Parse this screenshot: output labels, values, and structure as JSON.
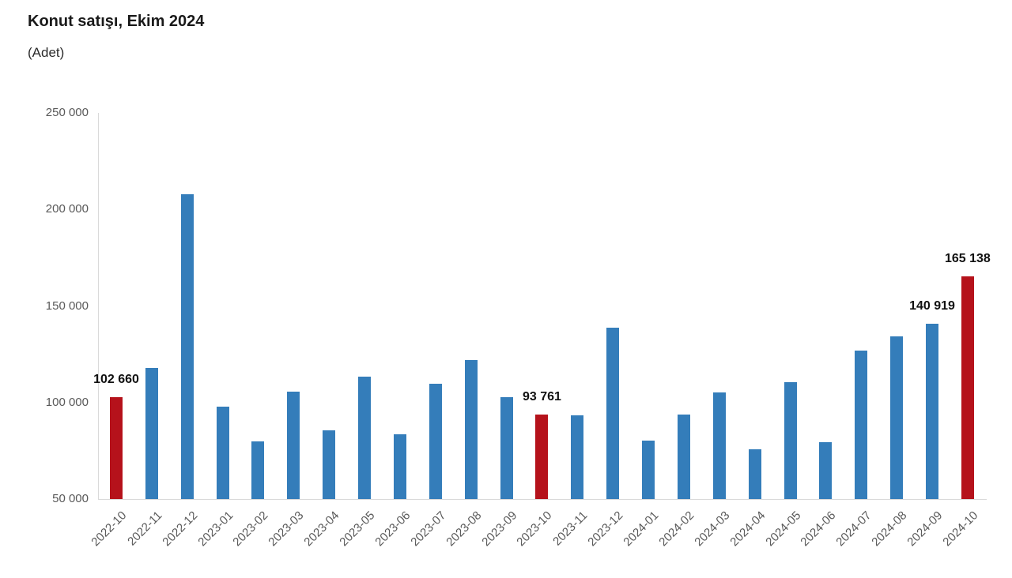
{
  "header": {
    "title": "Konut satışı, Ekim 2024",
    "subtitle": "(Adet)"
  },
  "chart_data": {
    "type": "bar",
    "title": "Konut satışı, Ekim 2024",
    "unit_label": "(Adet)",
    "categories": [
      "2022-10",
      "2022-11",
      "2022-12",
      "2023-01",
      "2023-02",
      "2023-03",
      "2023-04",
      "2023-05",
      "2023-06",
      "2023-07",
      "2023-08",
      "2023-09",
      "2023-10",
      "2023-11",
      "2023-12",
      "2024-01",
      "2024-02",
      "2024-03",
      "2024-04",
      "2024-05",
      "2024-06",
      "2024-07",
      "2024-08",
      "2024-09",
      "2024-10"
    ],
    "values": [
      102660,
      117806,
      207963,
      97708,
      80031,
      105476,
      85652,
      113404,
      83636,
      109548,
      122091,
      102656,
      93761,
      93514,
      138577,
      80308,
      93902,
      105394,
      75569,
      110588,
      79313,
      127088,
      134155,
      140919,
      165138
    ],
    "highlighted_categories": [
      "2022-10",
      "2023-10",
      "2024-10"
    ],
    "data_labels": [
      {
        "category": "2022-10",
        "value": 102660,
        "text": "102 660"
      },
      {
        "category": "2023-10",
        "value": 93761,
        "text": "93 761"
      },
      {
        "category": "2024-09",
        "value": 140919,
        "text": "140 919"
      },
      {
        "category": "2024-10",
        "value": 165138,
        "text": "165 138"
      }
    ],
    "ylim": [
      50000,
      250000
    ],
    "ytick_interval": 50000,
    "ytick_labels": [
      "50 000",
      "100 000",
      "150 000",
      "200 000",
      "250 000"
    ],
    "x_tick_rotation": -45,
    "grid": false,
    "legend": false,
    "colors": {
      "bar": "#347dba",
      "highlight": "#b5121b",
      "axis_line": "#d9d9d9",
      "tick_text": "#595959",
      "title_text": "#1a1a1a",
      "data_label_text": "#111111"
    }
  }
}
